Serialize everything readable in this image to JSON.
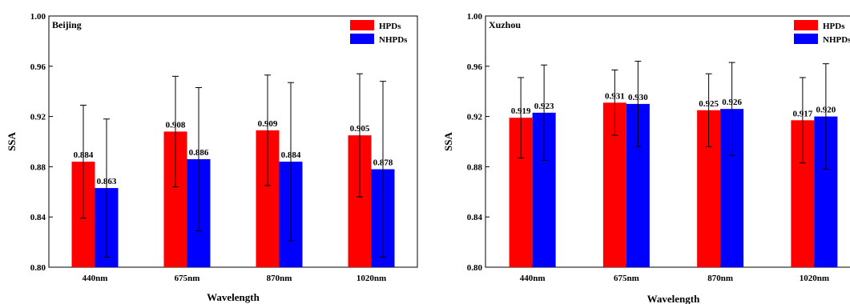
{
  "chart_data": [
    {
      "type": "bar",
      "title": "Beijing",
      "xlabel": "Wavelength",
      "ylabel": "SSA",
      "ylim": [
        0.8,
        1.0
      ],
      "yticks": [
        "0.80",
        "0.84",
        "0.88",
        "0.92",
        "0.96",
        "1.00"
      ],
      "categories": [
        "440nm",
        "675nm",
        "870nm",
        "1020nm"
      ],
      "legend_position": "top-right",
      "series": [
        {
          "name": "HPDs",
          "color": "#ff0000",
          "values": [
            0.884,
            0.908,
            0.909,
            0.905
          ],
          "labels": [
            "0.884",
            "0.908",
            "0.909",
            "0.905"
          ],
          "errors": [
            0.045,
            0.044,
            0.044,
            0.049
          ]
        },
        {
          "name": "NHPDs",
          "color": "#0000ff",
          "values": [
            0.863,
            0.886,
            0.884,
            0.878
          ],
          "labels": [
            "0.863",
            "0.886",
            "0.884",
            "0.878"
          ],
          "errors": [
            0.055,
            0.057,
            0.063,
            0.07
          ]
        }
      ]
    },
    {
      "type": "bar",
      "title": "Xuzhou",
      "xlabel": "Wavelength",
      "ylabel": "SSA",
      "ylim": [
        0.8,
        1.0
      ],
      "yticks": [
        "0.80",
        "0.84",
        "0.88",
        "0.92",
        "0.96",
        "1.00"
      ],
      "categories": [
        "440nm",
        "675nm",
        "870nm",
        "1020nm"
      ],
      "legend_position": "top-right",
      "series": [
        {
          "name": "HPDs",
          "color": "#ff0000",
          "values": [
            0.919,
            0.931,
            0.925,
            0.917
          ],
          "labels": [
            "0.919",
            "0.931",
            "0.925",
            "0.917"
          ],
          "errors": [
            0.032,
            0.026,
            0.029,
            0.034
          ]
        },
        {
          "name": "NHPDs",
          "color": "#0000ff",
          "values": [
            0.923,
            0.93,
            0.926,
            0.92
          ],
          "labels": [
            "0.923",
            "0.930",
            "0.926",
            "0.920"
          ],
          "errors": [
            0.038,
            0.034,
            0.037,
            0.042
          ]
        }
      ]
    }
  ]
}
